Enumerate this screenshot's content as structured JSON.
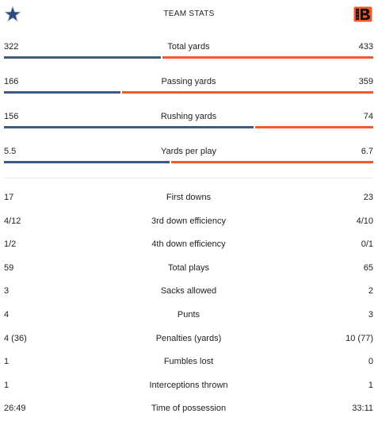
{
  "header": {
    "title": "TEAM STATS",
    "home_logo_icon": "star-logo-icon",
    "away_logo_icon": "striped-b-logo-icon",
    "home_color": "#3d5a80",
    "away_color": "#f05a28"
  },
  "bar_stats": [
    {
      "label": "Total yards",
      "home": "322",
      "away": "433",
      "home_value": 322,
      "away_value": 433
    },
    {
      "label": "Passing yards",
      "home": "166",
      "away": "359",
      "home_value": 166,
      "away_value": 359
    },
    {
      "label": "Rushing yards",
      "home": "156",
      "away": "74",
      "home_value": 156,
      "away_value": 74
    },
    {
      "label": "Yards per play",
      "home": "5.5",
      "away": "6.7",
      "home_value": 5.5,
      "away_value": 6.7
    }
  ],
  "row_stats": [
    {
      "label": "First downs",
      "home": "17",
      "away": "23"
    },
    {
      "label": "3rd down efficiency",
      "home": "4/12",
      "away": "4/10"
    },
    {
      "label": "4th down efficiency",
      "home": "1/2",
      "away": "0/1"
    },
    {
      "label": "Total plays",
      "home": "59",
      "away": "65"
    },
    {
      "label": "Sacks allowed",
      "home": "3",
      "away": "2"
    },
    {
      "label": "Punts",
      "home": "4",
      "away": "3"
    },
    {
      "label": "Penalties (yards)",
      "home": "4 (36)",
      "away": "10 (77)"
    },
    {
      "label": "Fumbles lost",
      "home": "1",
      "away": "0"
    },
    {
      "label": "Interceptions thrown",
      "home": "1",
      "away": "1"
    },
    {
      "label": "Time of possession",
      "home": "26:49",
      "away": "33:11"
    }
  ]
}
